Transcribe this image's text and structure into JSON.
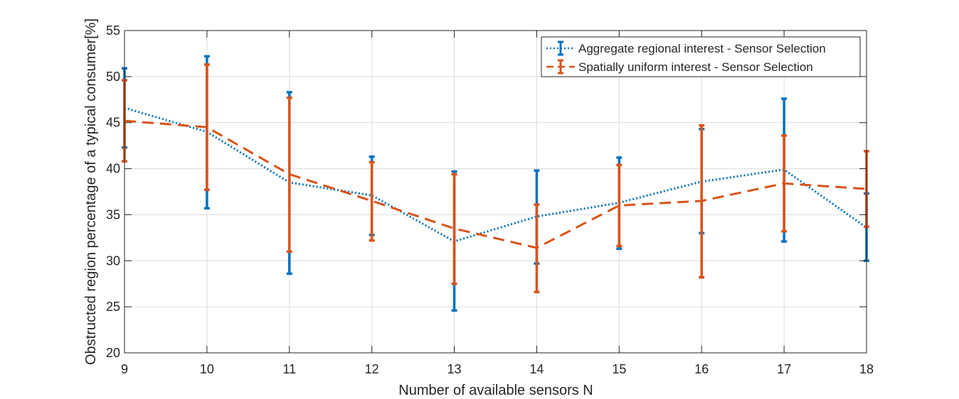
{
  "chart_data": {
    "type": "line",
    "title": "",
    "xlabel": "Number of available sensors N",
    "ylabel": "Obstructed region percentage of a typical consumer[%]",
    "xlim": [
      9,
      18
    ],
    "ylim": [
      20,
      55
    ],
    "x_ticks": [
      9,
      10,
      11,
      12,
      13,
      14,
      15,
      16,
      17,
      18
    ],
    "y_ticks": [
      20,
      25,
      30,
      35,
      40,
      45,
      50,
      55
    ],
    "grid": true,
    "legend_position": "top-right",
    "x": [
      9,
      10,
      11,
      12,
      13,
      14,
      15,
      16,
      17,
      18
    ],
    "series": [
      {
        "name": "Aggregate regional interest - Sensor Selection",
        "color": "#0072BD",
        "line_style": "dotted",
        "values": [
          46.6,
          44.0,
          38.5,
          37.1,
          32.1,
          34.8,
          36.3,
          38.6,
          39.9,
          33.6
        ],
        "error_low": [
          42.3,
          35.7,
          28.6,
          32.8,
          24.6,
          29.7,
          31.3,
          33.0,
          32.1,
          30.0
        ],
        "error_high": [
          50.9,
          52.2,
          48.3,
          41.3,
          39.7,
          39.8,
          41.2,
          44.3,
          47.6,
          37.3
        ]
      },
      {
        "name": "Spatially uniform interest - Sensor Selection",
        "color": "#D95319",
        "line_style": "dashed",
        "values": [
          45.2,
          44.5,
          39.4,
          36.5,
          33.5,
          31.4,
          36.0,
          36.5,
          38.4,
          37.8
        ],
        "error_low": [
          40.8,
          37.7,
          31.0,
          32.2,
          27.5,
          26.6,
          31.6,
          28.2,
          33.2,
          33.7
        ],
        "error_high": [
          49.6,
          51.3,
          47.7,
          40.7,
          39.4,
          36.1,
          40.4,
          44.7,
          43.6,
          41.9
        ]
      }
    ]
  }
}
